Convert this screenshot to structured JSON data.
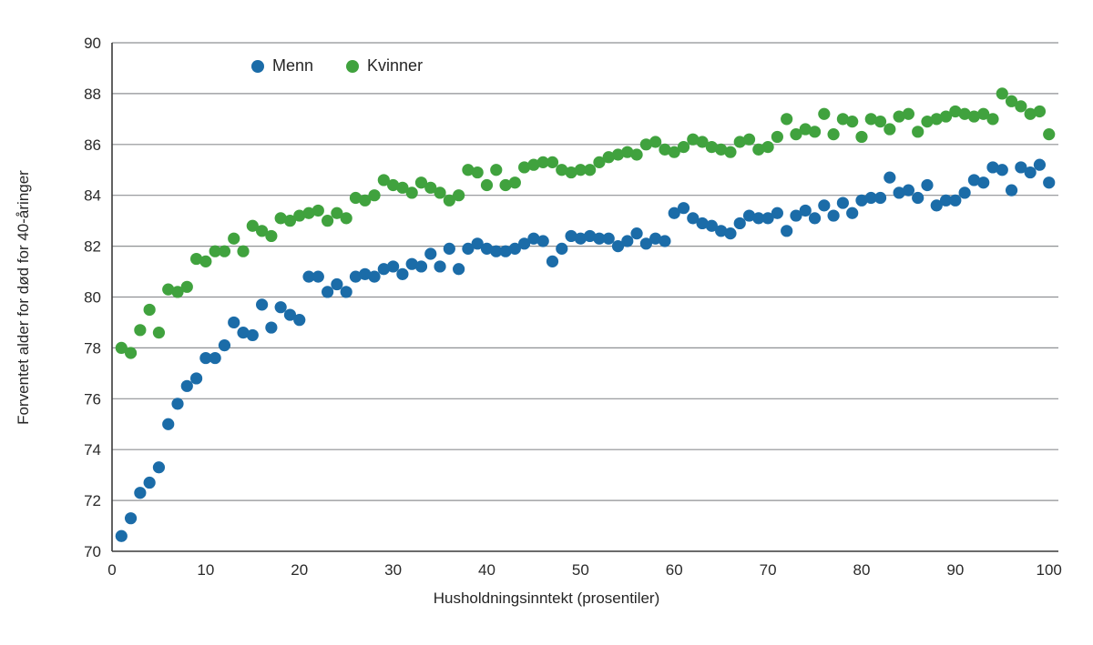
{
  "chart_data": {
    "type": "scatter",
    "title": "",
    "xlabel": "Husholdningsinntekt (prosentiler)",
    "ylabel": "Forventet alder for død for 40-åringer",
    "xlim": [
      0,
      101
    ],
    "ylim": [
      70,
      90
    ],
    "xticks": [
      0,
      10,
      20,
      30,
      40,
      50,
      60,
      70,
      80,
      90,
      100
    ],
    "yticks": [
      70,
      72,
      74,
      76,
      78,
      80,
      82,
      84,
      86,
      88,
      90
    ],
    "grid": "horizontal",
    "legend_position": "top-inside",
    "x": [
      1,
      2,
      3,
      4,
      5,
      6,
      7,
      8,
      9,
      10,
      11,
      12,
      13,
      14,
      15,
      16,
      17,
      18,
      19,
      20,
      21,
      22,
      23,
      24,
      25,
      26,
      27,
      28,
      29,
      30,
      31,
      32,
      33,
      34,
      35,
      36,
      37,
      38,
      39,
      40,
      41,
      42,
      43,
      44,
      45,
      46,
      47,
      48,
      49,
      50,
      51,
      52,
      53,
      54,
      55,
      56,
      57,
      58,
      59,
      60,
      61,
      62,
      63,
      64,
      65,
      66,
      67,
      68,
      69,
      70,
      71,
      72,
      73,
      74,
      75,
      76,
      77,
      78,
      79,
      80,
      81,
      82,
      83,
      84,
      85,
      86,
      87,
      88,
      89,
      90,
      91,
      92,
      93,
      94,
      95,
      96,
      97,
      98,
      99,
      100
    ],
    "series": [
      {
        "name": "Menn",
        "color": "#1b6ca8",
        "values": [
          70.6,
          71.3,
          72.3,
          72.7,
          73.3,
          75.0,
          75.8,
          76.5,
          76.8,
          77.6,
          77.6,
          78.1,
          79.0,
          78.6,
          78.5,
          79.7,
          78.8,
          79.6,
          79.3,
          79.1,
          80.8,
          80.8,
          80.2,
          80.5,
          80.2,
          80.8,
          80.9,
          80.8,
          81.1,
          81.2,
          80.9,
          81.3,
          81.2,
          81.7,
          81.2,
          81.9,
          81.1,
          81.9,
          82.1,
          81.9,
          81.8,
          81.8,
          81.9,
          82.1,
          82.3,
          82.2,
          81.4,
          81.9,
          82.4,
          82.3,
          82.4,
          82.3,
          82.3,
          82.0,
          82.2,
          82.5,
          82.1,
          82.3,
          82.2,
          83.3,
          83.5,
          83.1,
          82.9,
          82.8,
          82.6,
          82.5,
          82.9,
          83.2,
          83.1,
          83.1,
          83.3,
          82.6,
          83.2,
          83.4,
          83.1,
          83.6,
          83.2,
          83.7,
          83.3,
          83.8,
          83.9,
          83.9,
          84.7,
          84.1,
          84.2,
          83.9,
          84.4,
          83.6,
          83.8,
          83.8,
          84.1,
          84.6,
          84.5,
          85.1,
          85.0,
          84.2,
          85.1,
          84.9,
          85.2,
          84.5
        ]
      },
      {
        "name": "Kvinner",
        "color": "#40a23e",
        "values": [
          78.0,
          77.8,
          78.7,
          79.5,
          78.6,
          80.3,
          80.2,
          80.4,
          81.5,
          81.4,
          81.8,
          81.8,
          82.3,
          81.8,
          82.8,
          82.6,
          82.4,
          83.1,
          83.0,
          83.2,
          83.3,
          83.4,
          83.0,
          83.3,
          83.1,
          83.9,
          83.8,
          84.0,
          84.6,
          84.4,
          84.3,
          84.1,
          84.5,
          84.3,
          84.1,
          83.8,
          84.0,
          85.0,
          84.9,
          84.4,
          85.0,
          84.4,
          84.5,
          85.1,
          85.2,
          85.3,
          85.3,
          85.0,
          84.9,
          85.0,
          85.0,
          85.3,
          85.5,
          85.6,
          85.7,
          85.6,
          86.0,
          86.1,
          85.8,
          85.7,
          85.9,
          86.2,
          86.1,
          85.9,
          85.8,
          85.7,
          86.1,
          86.2,
          85.8,
          85.9,
          86.3,
          87.0,
          86.4,
          86.6,
          86.5,
          87.2,
          86.4,
          87.0,
          86.9,
          86.3,
          87.0,
          86.9,
          86.6,
          87.1,
          87.2,
          86.5,
          86.9,
          87.0,
          87.1,
          87.3,
          87.2,
          87.1,
          87.2,
          87.0,
          88.0,
          87.7,
          87.5,
          87.2,
          87.3,
          86.4
        ]
      }
    ],
    "style": {
      "grid_color": "#8f9194",
      "axis_color": "#3a3a3a",
      "tick_label_color": "#2a2a2a",
      "point_radius": 6.6
    }
  }
}
